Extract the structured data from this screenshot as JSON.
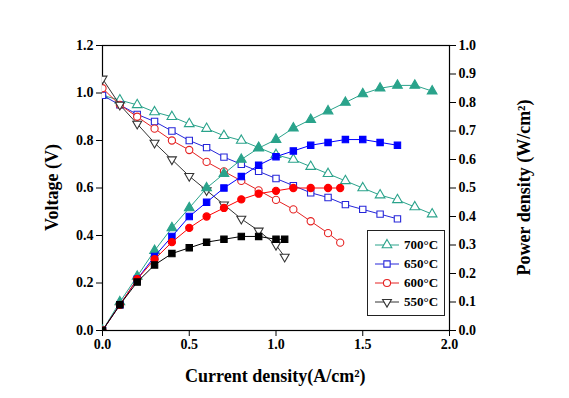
{
  "chart_data": {
    "type": "line",
    "x_label": "Current density(A/cm²)",
    "y_label": "Voltage (V)",
    "y2_label": "Power density (W/cm²)",
    "xlim": [
      0,
      2
    ],
    "xticks": [
      {
        "value": 0,
        "label": "0.0"
      },
      0.5,
      {
        "value": 1,
        "label": "1.0"
      },
      1.5,
      {
        "value": 2,
        "label": "2.0"
      }
    ],
    "ylim": [
      0,
      1.2
    ],
    "yticks": [
      {
        "value": 0,
        "label": "0.0"
      },
      0.2,
      0.4,
      0.6,
      0.8,
      {
        "value": 1,
        "label": "1.0"
      },
      1.2
    ],
    "y2lim": [
      0,
      1
    ],
    "y2ticks": [
      {
        "value": 0,
        "label": "0.0"
      },
      0.1,
      0.2,
      0.3,
      0.4,
      0.5,
      0.6,
      0.7,
      0.8,
      0.9,
      {
        "value": 1,
        "label": "1.0"
      }
    ],
    "grid": false,
    "legend": "lower right",
    "series": [
      {
        "name": "700°C",
        "axis": "y",
        "color": "#2aa38b",
        "marker": "triangle-open",
        "line_style": "solid",
        "x": [
          0,
          0.1,
          0.2,
          0.3,
          0.4,
          0.5,
          0.6,
          0.7,
          0.8,
          0.9,
          1.0,
          1.1,
          1.2,
          1.3,
          1.4,
          1.5,
          1.6,
          1.7,
          1.8,
          1.9
        ],
        "values": [
          0.99,
          0.97,
          0.95,
          0.92,
          0.9,
          0.87,
          0.85,
          0.82,
          0.8,
          0.77,
          0.74,
          0.72,
          0.69,
          0.66,
          0.63,
          0.6,
          0.57,
          0.55,
          0.52,
          0.49
        ]
      },
      {
        "name": "650°C",
        "axis": "y",
        "color": "#2626d9",
        "marker": "square-open",
        "line_style": "solid",
        "x": [
          0,
          0.1,
          0.2,
          0.3,
          0.4,
          0.5,
          0.6,
          0.7,
          0.8,
          0.9,
          1.0,
          1.1,
          1.2,
          1.3,
          1.4,
          1.5,
          1.6,
          1.7
        ],
        "values": [
          0.99,
          0.95,
          0.91,
          0.88,
          0.84,
          0.8,
          0.77,
          0.73,
          0.7,
          0.67,
          0.64,
          0.61,
          0.58,
          0.56,
          0.53,
          0.51,
          0.49,
          0.47
        ]
      },
      {
        "name": "600°C",
        "axis": "y",
        "color": "#e52222",
        "marker": "circle-open",
        "line_style": "solid",
        "x": [
          0,
          0.1,
          0.2,
          0.3,
          0.4,
          0.5,
          0.6,
          0.7,
          0.8,
          0.9,
          1.0,
          1.1,
          1.2,
          1.3,
          1.37
        ],
        "values": [
          1.02,
          0.95,
          0.9,
          0.85,
          0.8,
          0.76,
          0.71,
          0.67,
          0.63,
          0.59,
          0.55,
          0.51,
          0.46,
          0.41,
          0.37
        ]
      },
      {
        "name": "550°C",
        "axis": "y",
        "color": "#333333",
        "marker": "triangle-down-open",
        "line_style": "solid",
        "x": [
          0,
          0.1,
          0.2,
          0.3,
          0.4,
          0.5,
          0.6,
          0.7,
          0.8,
          0.9,
          1.0,
          1.05
        ],
        "values": [
          1.06,
          0.95,
          0.87,
          0.79,
          0.72,
          0.65,
          0.59,
          0.53,
          0.47,
          0.42,
          0.36,
          0.31
        ]
      },
      {
        "name": "700°C",
        "axis": "y2",
        "color": "#2aa38b",
        "marker": "triangle",
        "line_style": "solid",
        "x": [
          0,
          0.1,
          0.2,
          0.3,
          0.4,
          0.5,
          0.6,
          0.7,
          0.8,
          0.9,
          1.0,
          1.1,
          1.2,
          1.3,
          1.4,
          1.5,
          1.6,
          1.7,
          1.8,
          1.9
        ],
        "values": [
          0,
          0.1,
          0.19,
          0.28,
          0.36,
          0.43,
          0.5,
          0.55,
          0.6,
          0.64,
          0.67,
          0.71,
          0.74,
          0.77,
          0.8,
          0.83,
          0.85,
          0.86,
          0.86,
          0.84
        ]
      },
      {
        "name": "650°C",
        "axis": "y2",
        "color": "#0000ff",
        "marker": "square",
        "line_style": "solid",
        "x": [
          0,
          0.1,
          0.2,
          0.3,
          0.4,
          0.5,
          0.6,
          0.7,
          0.8,
          0.9,
          1.0,
          1.1,
          1.2,
          1.3,
          1.4,
          1.5,
          1.6,
          1.7
        ],
        "values": [
          0,
          0.09,
          0.18,
          0.26,
          0.33,
          0.4,
          0.45,
          0.5,
          0.54,
          0.58,
          0.61,
          0.63,
          0.65,
          0.66,
          0.67,
          0.67,
          0.66,
          0.65
        ]
      },
      {
        "name": "600°C",
        "axis": "y2",
        "color": "#ff0000",
        "marker": "circle",
        "line_style": "solid",
        "x": [
          0,
          0.1,
          0.2,
          0.3,
          0.4,
          0.5,
          0.6,
          0.7,
          0.8,
          0.9,
          1.0,
          1.1,
          1.2,
          1.3,
          1.37
        ],
        "values": [
          0,
          0.09,
          0.18,
          0.25,
          0.31,
          0.36,
          0.4,
          0.43,
          0.46,
          0.48,
          0.49,
          0.5,
          0.5,
          0.5,
          0.5
        ]
      },
      {
        "name": "550°C",
        "axis": "y2",
        "color": "#000000",
        "marker": "square",
        "line_style": "solid",
        "x": [
          0,
          0.1,
          0.2,
          0.3,
          0.4,
          0.5,
          0.6,
          0.7,
          0.8,
          0.9,
          1.0,
          1.05
        ],
        "values": [
          0,
          0.09,
          0.17,
          0.23,
          0.27,
          0.29,
          0.31,
          0.32,
          0.33,
          0.33,
          0.32,
          0.32
        ]
      }
    ]
  }
}
